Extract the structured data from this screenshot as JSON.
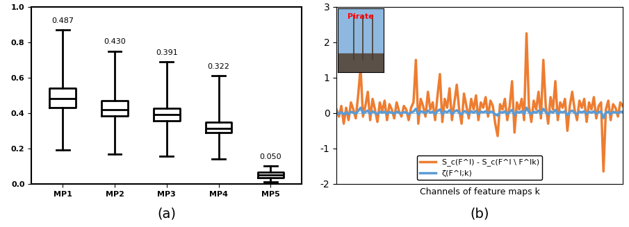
{
  "chart_data": [
    {
      "type": "box",
      "caption": "(a)",
      "categories": [
        "MP1",
        "MP2",
        "MP3",
        "MP4",
        "MP5"
      ],
      "stats": [
        {
          "whislo": 0.19,
          "q1": 0.43,
          "med": 0.48,
          "q3": 0.54,
          "whishi": 0.87
        },
        {
          "whislo": 0.17,
          "q1": 0.385,
          "med": 0.42,
          "q3": 0.47,
          "whishi": 0.75
        },
        {
          "whislo": 0.155,
          "q1": 0.355,
          "med": 0.39,
          "q3": 0.425,
          "whishi": 0.69
        },
        {
          "whislo": 0.14,
          "q1": 0.29,
          "med": 0.315,
          "q3": 0.35,
          "whishi": 0.61
        },
        {
          "whislo": 0.01,
          "q1": 0.035,
          "med": 0.05,
          "q3": 0.065,
          "whishi": 0.1
        }
      ],
      "annotations": [
        "0.487",
        "0.430",
        "0.391",
        "0.322",
        "0.050"
      ],
      "color": "#000000",
      "ylim": [
        0,
        1.0
      ],
      "yticks": [
        {
          "value": 0,
          "label": "0.0"
        },
        {
          "value": 0.2,
          "label": "0.2"
        },
        {
          "value": 0.4,
          "label": "0.4"
        },
        {
          "value": 0.6,
          "label": "0.6"
        },
        {
          "value": 0.8,
          "label": "0.8"
        },
        {
          "value": 1.0,
          "label": "1.0"
        }
      ],
      "grid": false
    },
    {
      "type": "line",
      "caption": "(b)",
      "inset_text": "Pirate",
      "x_label": "Channels of feature maps k",
      "xlim": [
        0,
        119
      ],
      "ylim": [
        -2,
        3
      ],
      "yticks": [
        -2,
        -1,
        0,
        1,
        2,
        3
      ],
      "tick_labels": "y",
      "grid": false,
      "legend": "lower center",
      "series": [
        {
          "name": "S_c(F^l) - S_c(F^l \\ F^lk)",
          "color": "#ed7d31",
          "values": [
            0.1,
            -0.1,
            0.2,
            -0.3,
            0.15,
            -0.2,
            0.3,
            0.1,
            -0.15,
            0.5,
            1.3,
            -0.1,
            0.2,
            0.6,
            -0.2,
            0.4,
            0.1,
            -0.25,
            0.3,
            0.05,
            0.35,
            -0.2,
            0.25,
            0.1,
            -0.15,
            0.3,
            0.05,
            -0.1,
            0.2,
            0.1,
            -0.2,
            0.15,
            0.3,
            1.5,
            -0.3,
            0.4,
            0.2,
            -0.1,
            0.6,
            0.1,
            0.3,
            -0.2,
            0.5,
            1.1,
            -0.25,
            0.4,
            0.15,
            0.7,
            -0.2,
            0.3,
            0.8,
            0.1,
            -0.3,
            0.55,
            0.2,
            -0.15,
            0.4,
            0.1,
            0.5,
            -0.2,
            0.3,
            0.15,
            0.45,
            -0.1,
            0.35,
            0.2,
            -0.3,
            -0.65,
            0.25,
            0.1,
            0.4,
            -0.2,
            0.2,
            0.9,
            -0.55,
            0.3,
            0.1,
            0.4,
            -0.2,
            2.25,
            0.2,
            -0.25,
            0.35,
            0.1,
            0.6,
            -0.15,
            1.5,
            0.2,
            -0.3,
            0.45,
            0.1,
            0.9,
            -0.2,
            0.3,
            0.15,
            0.4,
            -0.5,
            0.2,
            0.6,
            0.1,
            -0.2,
            0.35,
            0.15,
            0.4,
            -0.25,
            0.3,
            0.1,
            0.45,
            -0.15,
            0.2,
            0.3,
            -1.65,
            0.1,
            0.35,
            -0.2,
            0.25,
            0.15,
            -0.1,
            0.3,
            0.2
          ]
        },
        {
          "name": "ζ(F^l;k)",
          "color": "#5b9bd5",
          "values": [
            0.02,
            -0.02,
            0.03,
            -0.04,
            0.02,
            -0.03,
            0.04,
            0.01,
            -0.02,
            0.06,
            0.15,
            -0.01,
            0.03,
            0.07,
            -0.03,
            0.05,
            0.01,
            -0.03,
            0.04,
            0.01,
            0.04,
            -0.03,
            0.03,
            0.01,
            -0.02,
            0.04,
            0.01,
            -0.01,
            0.03,
            0.01,
            -0.03,
            0.02,
            0.04,
            0.12,
            -0.04,
            0.05,
            0.03,
            -0.01,
            0.07,
            0.01,
            0.04,
            -0.03,
            0.06,
            0.1,
            -0.03,
            0.05,
            0.02,
            0.08,
            -0.03,
            0.04,
            0.08,
            0.01,
            -0.04,
            0.06,
            0.03,
            -0.02,
            0.05,
            0.01,
            0.06,
            -0.03,
            0.04,
            0.02,
            0.05,
            -0.01,
            0.04,
            0.03,
            -0.04,
            -0.07,
            0.03,
            0.01,
            0.05,
            -0.03,
            0.03,
            0.09,
            -0.06,
            0.04,
            0.01,
            0.05,
            -0.03,
            0.15,
            0.03,
            -0.03,
            0.04,
            0.01,
            0.07,
            -0.02,
            0.12,
            0.03,
            -0.04,
            0.05,
            0.01,
            0.09,
            -0.03,
            0.04,
            0.02,
            0.05,
            -0.06,
            0.03,
            0.07,
            0.01,
            -0.03,
            0.04,
            0.02,
            0.05,
            -0.03,
            0.04,
            0.01,
            0.05,
            -0.02,
            0.03,
            0.04,
            -0.14,
            0.01,
            0.04,
            -0.03,
            0.03,
            0.02,
            -0.01,
            0.04,
            0.03
          ]
        }
      ]
    }
  ]
}
